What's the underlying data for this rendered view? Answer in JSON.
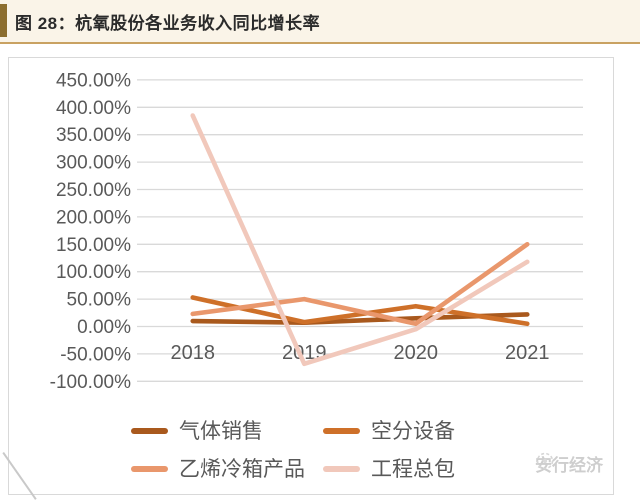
{
  "title": {
    "label": "图 28：杭氧股份各业务收入同比增长率"
  },
  "watermark": {
    "label": "安行经济"
  },
  "chart_data": {
    "type": "line",
    "title": "杭氧股份各业务收入同比增长率",
    "categories": [
      "2018",
      "2019",
      "2020",
      "2021"
    ],
    "series": [
      {
        "name": "气体销售",
        "color": "#a9591d",
        "values": [
          10,
          7,
          15,
          22
        ]
      },
      {
        "name": "空分设备",
        "color": "#ce7029",
        "values": [
          53,
          8,
          37,
          5
        ]
      },
      {
        "name": "乙烯冷箱产品",
        "color": "#e9976c",
        "values": [
          23,
          50,
          5,
          150
        ]
      },
      {
        "name": "工程总包",
        "color": "#f1c8bb",
        "values": [
          385,
          -68,
          -5,
          118
        ]
      }
    ],
    "ylim": [
      -100,
      450
    ],
    "ystep": 50,
    "y_ticks": [
      "450.00%",
      "400.00%",
      "350.00%",
      "300.00%",
      "250.00%",
      "200.00%",
      "150.00%",
      "100.00%",
      "50.00%",
      "0.00%",
      "-50.00%",
      "-100.00%"
    ],
    "xlabel": "",
    "ylabel": "",
    "grid": true,
    "legend_position": "bottom",
    "tick_color": "#595959",
    "grid_color": "#d9d9d9"
  }
}
